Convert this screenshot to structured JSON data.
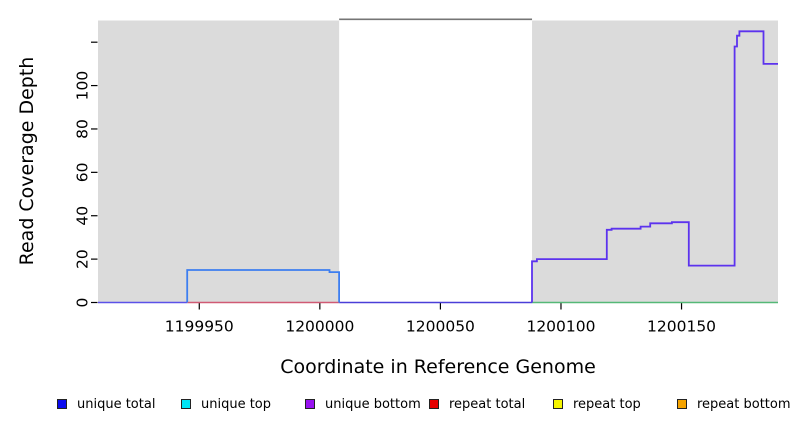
{
  "chart_data": {
    "type": "line",
    "subtype": "step-coverage",
    "title": "",
    "xlabel": "Coordinate in Reference Genome",
    "ylabel": "Read Coverage Depth",
    "xlim": [
      1199908,
      1200190
    ],
    "ylim": [
      0,
      130
    ],
    "grid": false,
    "plot_bg_color": "#DBDBDB",
    "gap_region": {
      "x1": 1200008,
      "x2": 1200088,
      "fill": "#FFFFFF",
      "border_top_color": "#757575"
    },
    "x_ticks": [
      {
        "v": 1199950,
        "label": "1199950"
      },
      {
        "v": 1200000,
        "label": "1200000"
      },
      {
        "v": 1200050,
        "label": "1200050"
      },
      {
        "v": 1200100,
        "label": "1200100"
      },
      {
        "v": 1200150,
        "label": "1200150"
      }
    ],
    "y_ticks": [
      {
        "v": 0,
        "label": "0"
      },
      {
        "v": 20,
        "label": "20"
      },
      {
        "v": 40,
        "label": "40"
      },
      {
        "v": 60,
        "label": "60"
      },
      {
        "v": 80,
        "label": "80"
      },
      {
        "v": 100,
        "label": "100"
      },
      {
        "v": 120,
        "label": ""
      }
    ],
    "series": [
      {
        "name": "baseline-left-zero",
        "color": "#5B51E8",
        "width": 1.6,
        "points": [
          [
            1199908,
            0
          ],
          [
            1199945,
            0
          ]
        ]
      },
      {
        "name": "baseline-repeat-zero",
        "color": "#D05A74",
        "width": 1.6,
        "points": [
          [
            1199945,
            0
          ],
          [
            1200008,
            0
          ]
        ]
      },
      {
        "name": "baseline-gap-zero",
        "color": "#4A3FD8",
        "width": 1.6,
        "points": [
          [
            1200008,
            0
          ],
          [
            1200088,
            0
          ]
        ]
      },
      {
        "name": "baseline-right-green",
        "color": "#55B877",
        "width": 1.6,
        "points": [
          [
            1200088,
            0
          ],
          [
            1200190,
            0
          ]
        ]
      },
      {
        "name": "unique-total-left-plateau",
        "color": "#3D7EF0",
        "width": 1.8,
        "points": [
          [
            1199945,
            0
          ],
          [
            1199945,
            15
          ],
          [
            1200004,
            15
          ],
          [
            1200004,
            14
          ],
          [
            1200008,
            14
          ],
          [
            1200008,
            0
          ]
        ]
      },
      {
        "name": "unique-bottom-right-steps",
        "color": "#5C33EE",
        "width": 1.8,
        "points": [
          [
            1200088,
            0
          ],
          [
            1200088,
            19
          ],
          [
            1200090,
            19
          ],
          [
            1200090,
            20
          ],
          [
            1200119,
            20
          ],
          [
            1200119,
            33.5
          ],
          [
            1200121,
            33.5
          ],
          [
            1200121,
            34
          ],
          [
            1200133,
            34
          ],
          [
            1200133,
            35
          ],
          [
            1200137,
            35
          ],
          [
            1200137,
            36.5
          ],
          [
            1200146,
            36.5
          ],
          [
            1200146,
            37
          ],
          [
            1200153,
            37
          ],
          [
            1200153,
            17
          ],
          [
            1200172,
            17
          ],
          [
            1200172,
            118
          ],
          [
            1200173,
            118
          ],
          [
            1200173,
            123
          ],
          [
            1200174,
            123
          ],
          [
            1200174,
            125
          ],
          [
            1200184,
            125
          ],
          [
            1200184,
            110
          ],
          [
            1200190,
            110
          ]
        ]
      }
    ],
    "legend": {
      "position": "bottom",
      "items": [
        {
          "label": "unique total",
          "color": "#0B0BEE"
        },
        {
          "label": "unique top",
          "color": "#00E5F5"
        },
        {
          "label": "unique bottom",
          "color": "#9812F0"
        },
        {
          "label": "repeat total",
          "color": "#E60000"
        },
        {
          "label": "repeat top",
          "color": "#F5F500"
        },
        {
          "label": "repeat bottom",
          "color": "#F5A300"
        }
      ]
    }
  }
}
